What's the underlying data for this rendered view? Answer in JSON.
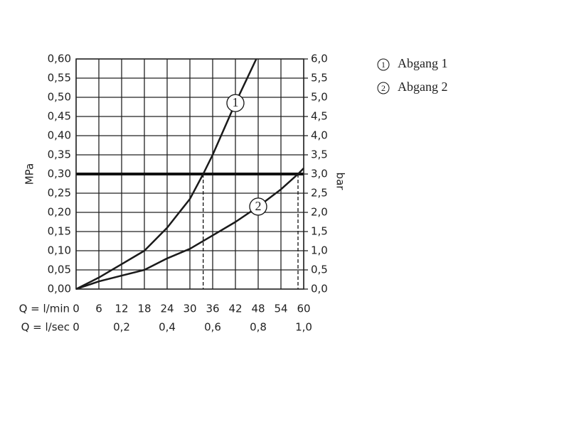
{
  "chart_data": {
    "type": "line",
    "y_label": "MPa",
    "y2_label": "bar",
    "x_label": "Q = l/min",
    "x2_label": "Q = l/sec",
    "xlim": [
      0,
      60
    ],
    "xticks": [
      0,
      6,
      12,
      18,
      24,
      30,
      36,
      42,
      48,
      54,
      60
    ],
    "x2lim": [
      0,
      1
    ],
    "x2ticks": [
      0,
      {
        "value": 0.2,
        "label": "0,2"
      },
      {
        "value": 0.4,
        "label": "0,4"
      },
      {
        "value": 0.6,
        "label": "0,6"
      },
      {
        "value": 0.8,
        "label": "0,8"
      },
      {
        "value": 1,
        "label": "1,0"
      }
    ],
    "ylim": [
      0,
      0.6
    ],
    "yticks": [
      {
        "value": 0,
        "label": "0,00"
      },
      {
        "value": 0.05,
        "label": "0,05"
      },
      {
        "value": 0.1,
        "label": "0,10"
      },
      {
        "value": 0.15,
        "label": "0,15"
      },
      {
        "value": 0.2,
        "label": "0,20"
      },
      {
        "value": 0.25,
        "label": "0,25"
      },
      {
        "value": 0.3,
        "label": "0,30"
      },
      {
        "value": 0.35,
        "label": "0,35"
      },
      {
        "value": 0.4,
        "label": "0,40"
      },
      {
        "value": 0.45,
        "label": "0,45"
      },
      {
        "value": 0.5,
        "label": "0,50"
      },
      {
        "value": 0.55,
        "label": "0,55"
      },
      {
        "value": 0.6,
        "label": "0,60"
      }
    ],
    "y2lim": [
      0,
      6
    ],
    "y2ticks": [
      {
        "value": 0,
        "label": "0,0"
      },
      {
        "value": 0.5,
        "label": "0,5"
      },
      {
        "value": 1,
        "label": "1,0"
      },
      {
        "value": 1.5,
        "label": "1,5"
      },
      {
        "value": 2,
        "label": "2,0"
      },
      {
        "value": 2.5,
        "label": "2,5"
      },
      {
        "value": 3,
        "label": "3,0"
      },
      {
        "value": 3.5,
        "label": "3,5"
      },
      {
        "value": 4,
        "label": "4,0"
      },
      {
        "value": 4.5,
        "label": "4,5"
      },
      {
        "value": 5,
        "label": "5,0"
      },
      {
        "value": 5.5,
        "label": "5,5"
      },
      {
        "value": 6,
        "label": "6,0"
      }
    ],
    "grid": true,
    "hline": 0.3,
    "vlines": [
      33.5,
      58.5
    ],
    "series": [
      {
        "name": "Abgang 1",
        "label": "1",
        "color": "#1a1a1a",
        "x": [
          0,
          6,
          12,
          18,
          24,
          30,
          33.5,
          36,
          42,
          47.5
        ],
        "values": [
          0,
          0.03,
          0.065,
          0.1,
          0.16,
          0.235,
          0.3,
          0.35,
          0.485,
          0.6
        ]
      },
      {
        "name": "Abgang 2",
        "label": "2",
        "color": "#1a1a1a",
        "x": [
          0,
          6,
          12,
          18,
          24,
          30,
          36,
          42,
          48,
          54,
          58.5,
          60
        ],
        "values": [
          0,
          0.02,
          0.035,
          0.05,
          0.08,
          0.105,
          0.14,
          0.175,
          0.215,
          0.26,
          0.3,
          0.315
        ]
      }
    ]
  }
}
